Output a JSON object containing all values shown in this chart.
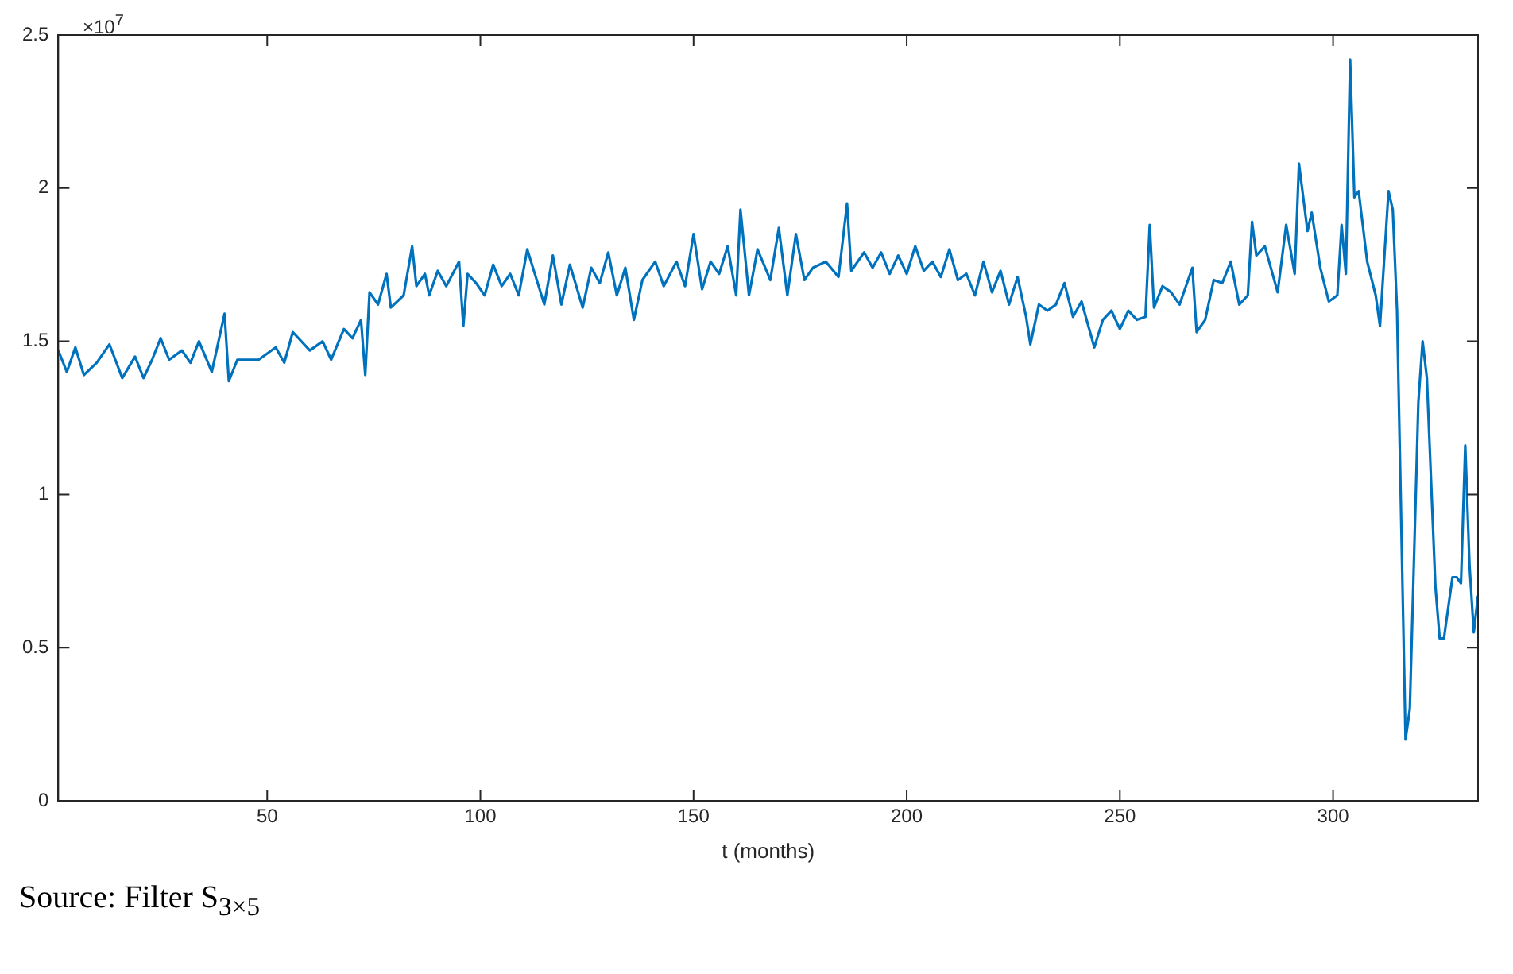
{
  "chart_data": {
    "type": "line",
    "xlabel": "t (months)",
    "annotations": [
      "×10$^{7}$",
      "Source: Filter S$_{3×5}$"
    ],
    "x": [
      1,
      3,
      5,
      7,
      10,
      13,
      16,
      19,
      21,
      23,
      25,
      27,
      30,
      32,
      34,
      37,
      40,
      41,
      43,
      48,
      52,
      54,
      56,
      60,
      63,
      65,
      68,
      70,
      72,
      73,
      74,
      76,
      78,
      79,
      82,
      84,
      85,
      87,
      88,
      90,
      92,
      95,
      96,
      97,
      99,
      101,
      103,
      105,
      107,
      109,
      111,
      113,
      115,
      117,
      119,
      121,
      124,
      126,
      128,
      130,
      132,
      134,
      136,
      138,
      141,
      143,
      146,
      148,
      150,
      152,
      154,
      156,
      158,
      160,
      161,
      163,
      165,
      168,
      170,
      172,
      174,
      176,
      178,
      181,
      184,
      186,
      187,
      190,
      192,
      194,
      196,
      198,
      200,
      202,
      204,
      206,
      208,
      210,
      212,
      214,
      216,
      218,
      220,
      222,
      224,
      226,
      228,
      229,
      231,
      233,
      235,
      237,
      239,
      241,
      243,
      244,
      246,
      248,
      250,
      252,
      254,
      256,
      257,
      258,
      260,
      262,
      264,
      267,
      268,
      270,
      272,
      274,
      276,
      278,
      280,
      281,
      282,
      284,
      287,
      289,
      291,
      292,
      294,
      295,
      297,
      299,
      301,
      302,
      303,
      304,
      305,
      306,
      308,
      310,
      311,
      313,
      314,
      315,
      317,
      318,
      320,
      321,
      322,
      324,
      325,
      326,
      328,
      329,
      330,
      331,
      332,
      333,
      334
    ],
    "series": [
      {
        "color": "#0072bd",
        "values": [
          1.47,
          1.4,
          1.48,
          1.39,
          1.43,
          1.49,
          1.38,
          1.45,
          1.38,
          1.44,
          1.51,
          1.44,
          1.47,
          1.43,
          1.5,
          1.4,
          1.59,
          1.37,
          1.44,
          1.44,
          1.48,
          1.43,
          1.53,
          1.47,
          1.5,
          1.44,
          1.54,
          1.51,
          1.57,
          1.39,
          1.66,
          1.62,
          1.72,
          1.61,
          1.65,
          1.81,
          1.68,
          1.72,
          1.65,
          1.73,
          1.68,
          1.76,
          1.55,
          1.72,
          1.69,
          1.65,
          1.75,
          1.68,
          1.72,
          1.65,
          1.8,
          1.71,
          1.62,
          1.78,
          1.62,
          1.75,
          1.61,
          1.74,
          1.69,
          1.79,
          1.65,
          1.74,
          1.57,
          1.7,
          1.76,
          1.68,
          1.76,
          1.68,
          1.85,
          1.67,
          1.76,
          1.72,
          1.81,
          1.65,
          1.93,
          1.65,
          1.8,
          1.7,
          1.87,
          1.65,
          1.85,
          1.7,
          1.74,
          1.76,
          1.71,
          1.95,
          1.73,
          1.79,
          1.74,
          1.79,
          1.72,
          1.78,
          1.72,
          1.81,
          1.73,
          1.76,
          1.71,
          1.8,
          1.7,
          1.72,
          1.65,
          1.76,
          1.66,
          1.73,
          1.62,
          1.71,
          1.58,
          1.49,
          1.62,
          1.6,
          1.62,
          1.69,
          1.58,
          1.63,
          1.53,
          1.48,
          1.57,
          1.6,
          1.54,
          1.6,
          1.57,
          1.58,
          1.88,
          1.61,
          1.68,
          1.66,
          1.62,
          1.74,
          1.53,
          1.57,
          1.7,
          1.69,
          1.76,
          1.62,
          1.65,
          1.89,
          1.78,
          1.81,
          1.66,
          1.88,
          1.72,
          2.08,
          1.86,
          1.92,
          1.74,
          1.63,
          1.65,
          1.88,
          1.72,
          2.42,
          1.97,
          1.99,
          1.76,
          1.65,
          1.55,
          1.99,
          1.93,
          1.6,
          0.2,
          0.3,
          1.3,
          1.5,
          1.38,
          0.7,
          0.53,
          0.53,
          0.73,
          0.73,
          0.71,
          1.16,
          0.77,
          0.55,
          0.67
        ]
      }
    ],
    "xlim": [
      1,
      334
    ],
    "xticks": [
      50,
      100,
      150,
      200,
      250,
      300
    ],
    "ylim": [
      0,
      2.5
    ],
    "yticks": [
      0,
      0.5,
      1,
      1.5,
      2,
      2.5
    ],
    "grid": false,
    "legend": false,
    "marker": "none",
    "line_style": "solid"
  }
}
